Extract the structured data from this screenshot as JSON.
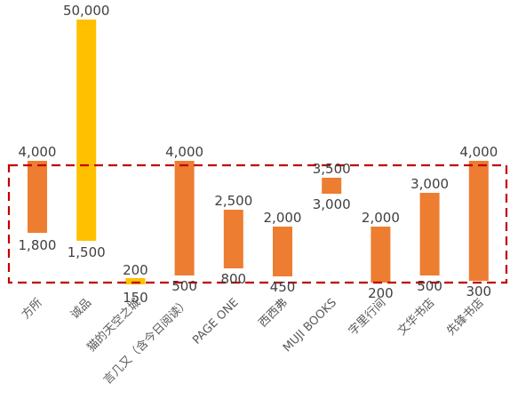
{
  "chart_data": {
    "type": "bar",
    "subtype": "floating-range",
    "categories": [
      "方所",
      "诚品",
      "猫的天空之城",
      "言几又（含今日阅读）",
      "PAGE ONE",
      "西西弗",
      "MUJI BOOKS",
      "字里行间",
      "文华书店",
      "先锋书店"
    ],
    "series": [
      {
        "low": [
          1800,
          1500,
          150,
          500,
          800,
          450,
          3000,
          200,
          500,
          300
        ],
        "high": [
          4000,
          50000,
          200,
          4000,
          2500,
          2000,
          3500,
          2000,
          3000,
          4000
        ],
        "low_labels": [
          "1,800",
          "1,500",
          "150",
          "500",
          "800",
          "450",
          "3,000",
          "200",
          "500",
          "300"
        ],
        "high_labels": [
          "4,000",
          "50,000",
          "200",
          "4,000",
          "2,500",
          "2,000",
          "3,500",
          "2,000",
          "3,000",
          "4,000"
        ],
        "colors": [
          "#ED7D31",
          "#FFC000",
          "#FFC000",
          "#ED7D31",
          "#ED7D31",
          "#ED7D31",
          "#ED7D31",
          "#ED7D31",
          "#ED7D31",
          "#ED7D31"
        ]
      }
    ],
    "y_scale": "non-linear (broken axis)",
    "grid": false,
    "legend": "none",
    "highlight_box": {
      "color": "#C00000",
      "style": "dashed"
    }
  }
}
